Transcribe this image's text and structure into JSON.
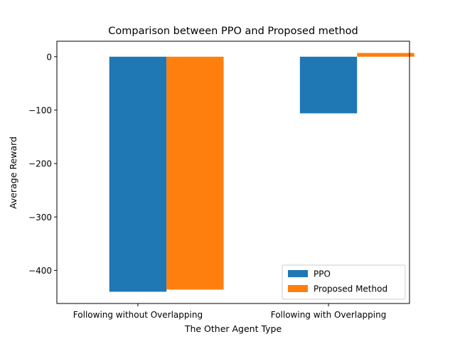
{
  "chart_data": {
    "type": "bar",
    "title": "Comparison between PPO and Proposed method",
    "xlabel": "The Other Agent Type",
    "ylabel": "Average Reward",
    "categories": [
      "Following without Overlapping",
      "Following with Overlapping"
    ],
    "series": [
      {
        "name": "PPO",
        "color": "#1f77b4",
        "values": [
          -440,
          -106
        ]
      },
      {
        "name": "Proposed Method",
        "color": "#ff7f0e",
        "values": [
          -436,
          7
        ]
      }
    ],
    "ylim": [
      -462,
      29
    ],
    "yticks": [
      0,
      -100,
      -200,
      -300,
      -400
    ],
    "ytick_labels": [
      "0",
      "−100",
      "−200",
      "−300",
      "−400"
    ],
    "grid": false,
    "legend_position": "lower-right"
  }
}
